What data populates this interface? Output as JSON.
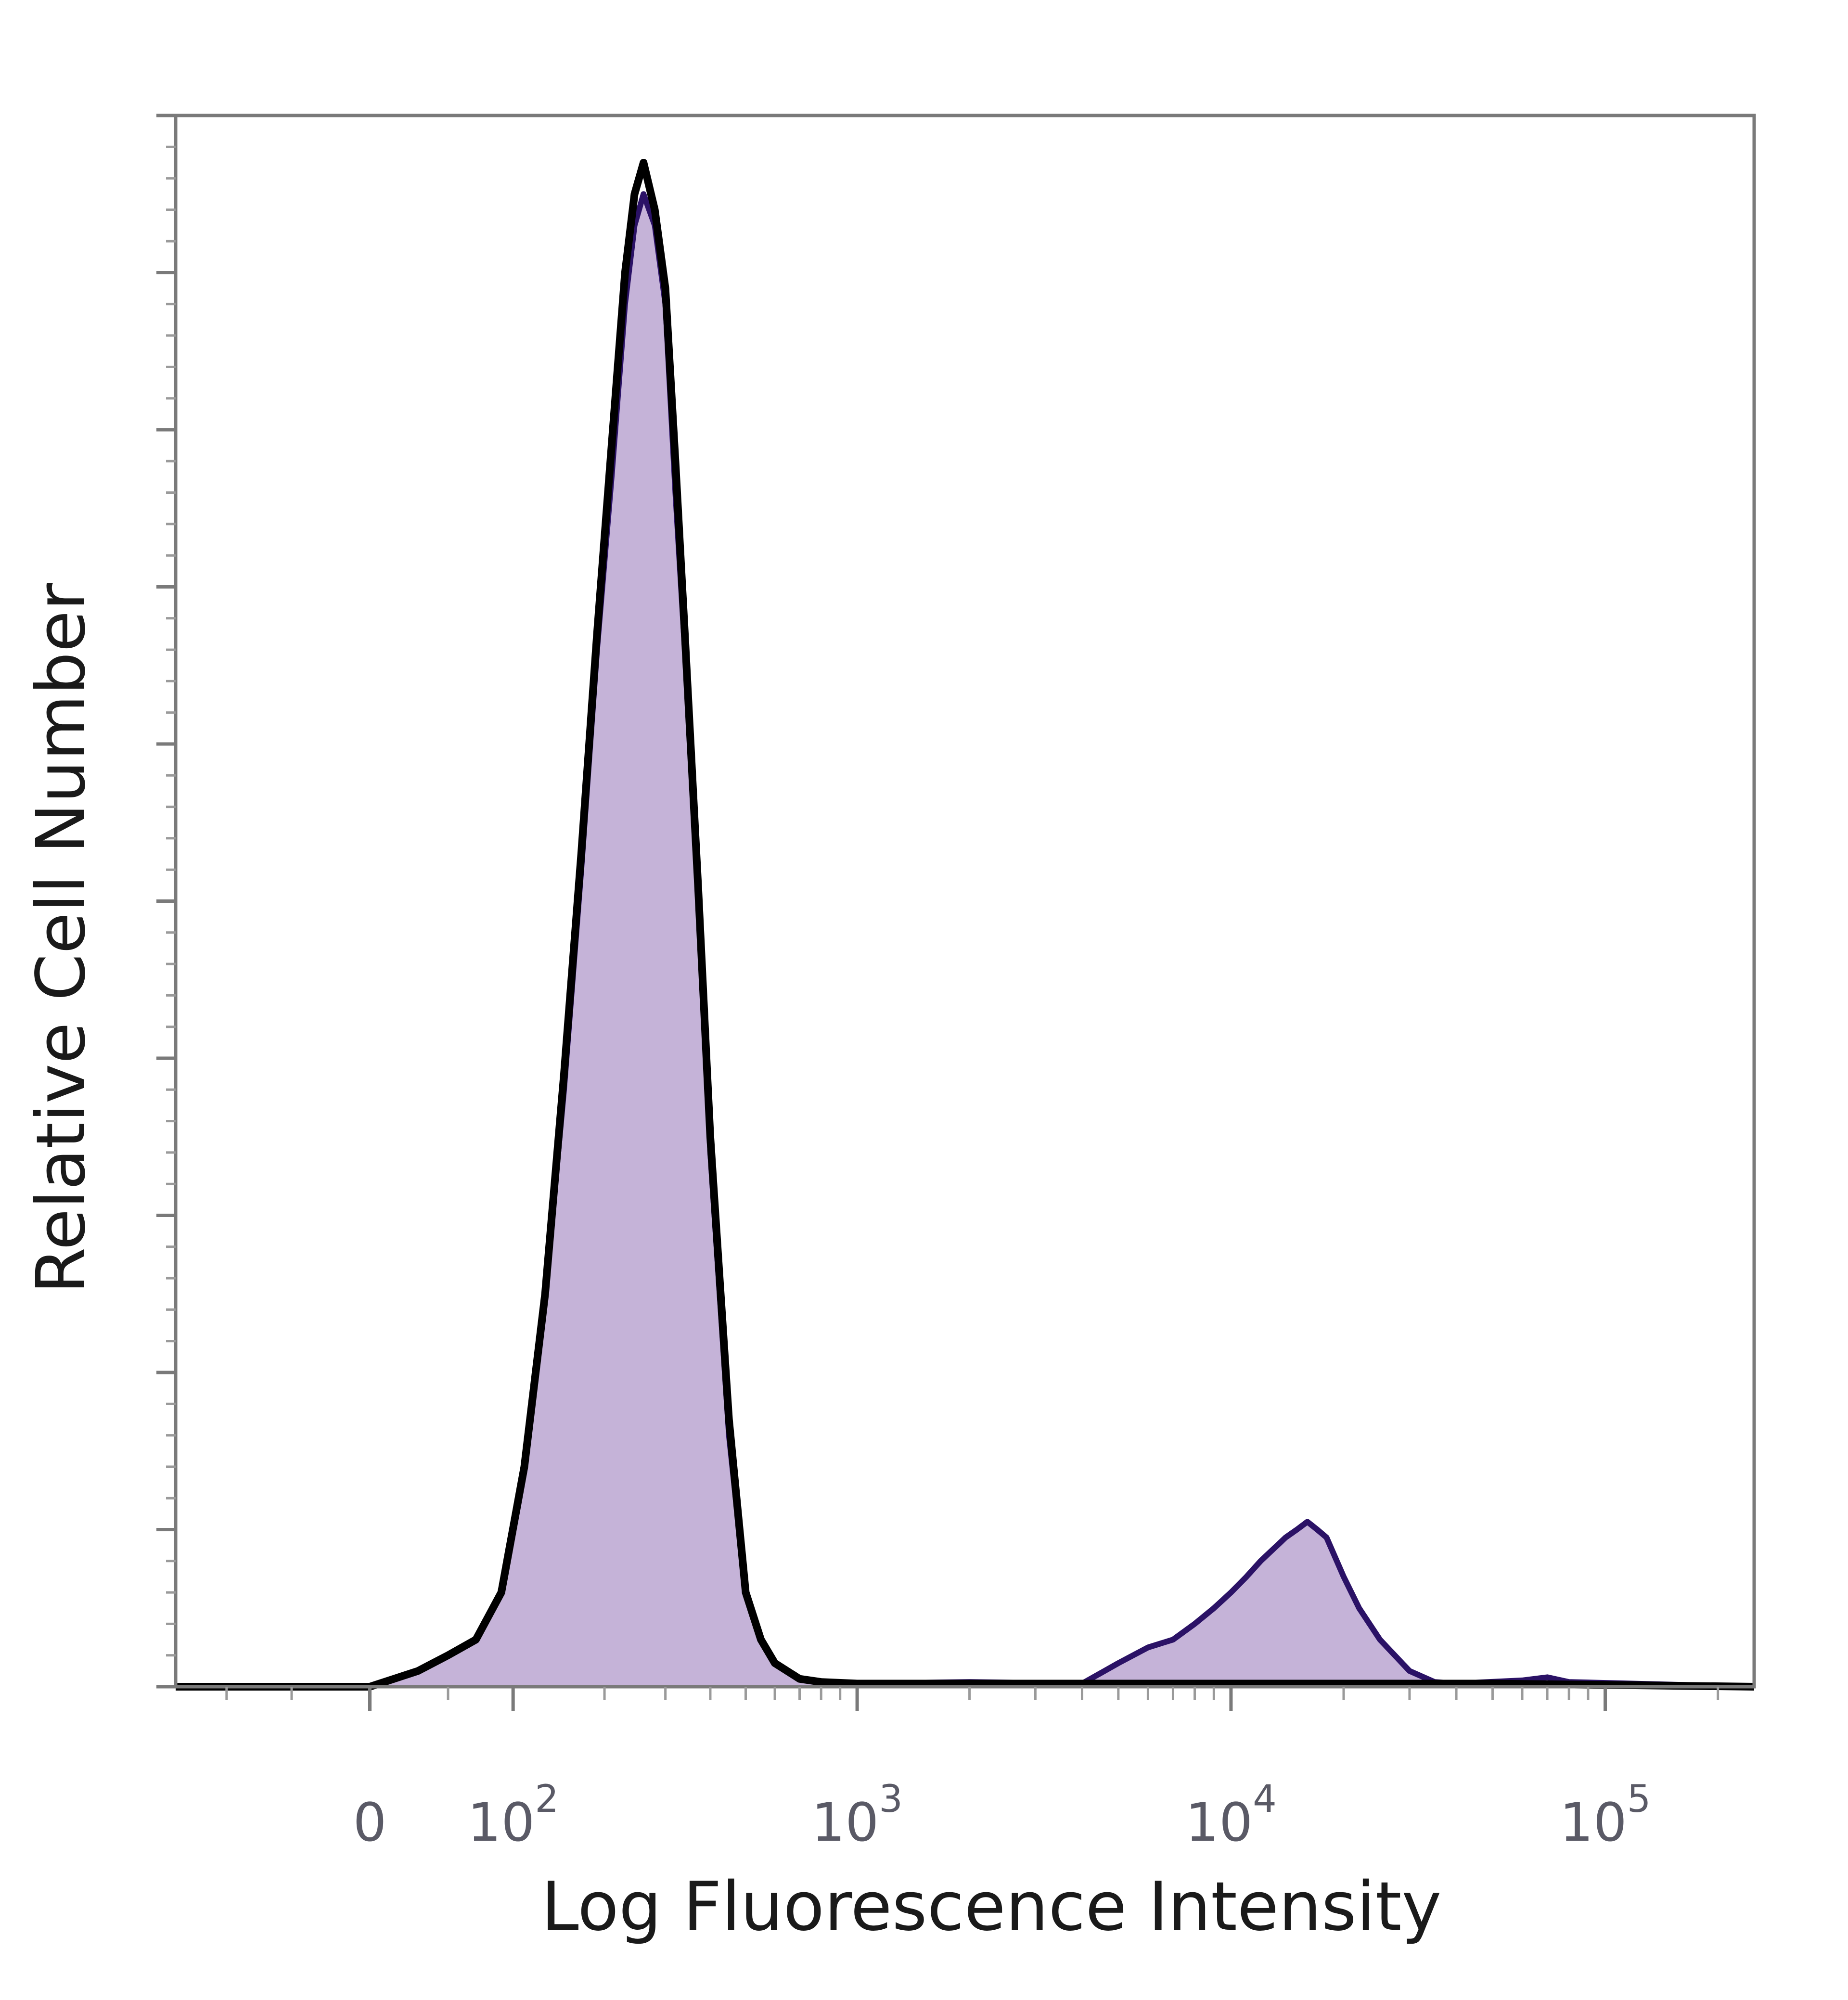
{
  "chart_data": {
    "type": "area",
    "xlabel": "Log Fluorescence Intensity",
    "ylabel": "Relative Cell Number",
    "x_scale": "biexponential",
    "xlim": [
      -150,
      250000
    ],
    "ylim": [
      0,
      1.0
    ],
    "x_ticks": [
      {
        "value": 0,
        "base": "0",
        "exp": ""
      },
      {
        "value": 100,
        "base": "10",
        "exp": "2"
      },
      {
        "value": 1000,
        "base": "10",
        "exp": "3"
      },
      {
        "value": 10000,
        "base": "10",
        "exp": "4"
      },
      {
        "value": 100000,
        "base": "10",
        "exp": "5"
      }
    ],
    "y_ticks_count": 11,
    "series": [
      {
        "style": "filled",
        "color": "#c5b3d8",
        "edge_color": "#2b1266",
        "x": [
          -150,
          -60,
          0,
          30,
          50,
          70,
          90,
          110,
          130,
          150,
          170,
          190,
          210,
          230,
          245,
          260,
          280,
          300,
          320,
          340,
          370,
          400,
          450,
          500,
          550,
          600,
          700,
          800,
          1000,
          2000,
          4000,
          5000,
          6000,
          7000,
          8000,
          9000,
          10000,
          11000,
          12000,
          14000,
          15000,
          16000,
          17000,
          18000,
          20000,
          22000,
          25000,
          30000,
          35000,
          40000,
          60000,
          70000,
          80000,
          250000
        ],
        "y": [
          0,
          0,
          0,
          0.01,
          0.02,
          0.03,
          0.06,
          0.14,
          0.25,
          0.38,
          0.52,
          0.66,
          0.77,
          0.88,
          0.93,
          0.95,
          0.93,
          0.88,
          0.76,
          0.66,
          0.5,
          0.34,
          0.16,
          0.06,
          0.03,
          0.015,
          0.005,
          0.003,
          0.002,
          0.003,
          0.002,
          0.015,
          0.025,
          0.03,
          0.04,
          0.05,
          0.06,
          0.07,
          0.08,
          0.095,
          0.1,
          0.105,
          0.1,
          0.095,
          0.07,
          0.05,
          0.03,
          0.01,
          0.003,
          0.002,
          0.004,
          0.006,
          0.003,
          0
        ]
      },
      {
        "style": "outline",
        "color": "#000000",
        "x": [
          -150,
          -60,
          0,
          30,
          50,
          70,
          90,
          110,
          130,
          150,
          170,
          190,
          210,
          230,
          245,
          260,
          280,
          300,
          320,
          340,
          370,
          400,
          450,
          500,
          550,
          600,
          700,
          800,
          1000,
          2000,
          4000,
          10000,
          20000,
          50000,
          250000
        ],
        "y": [
          0,
          0,
          0,
          0.01,
          0.02,
          0.03,
          0.06,
          0.14,
          0.25,
          0.39,
          0.53,
          0.67,
          0.79,
          0.9,
          0.95,
          0.97,
          0.94,
          0.89,
          0.78,
          0.67,
          0.51,
          0.35,
          0.17,
          0.06,
          0.03,
          0.015,
          0.005,
          0.003,
          0.002,
          0.002,
          0.002,
          0.002,
          0.002,
          0.002,
          0
        ]
      }
    ]
  }
}
